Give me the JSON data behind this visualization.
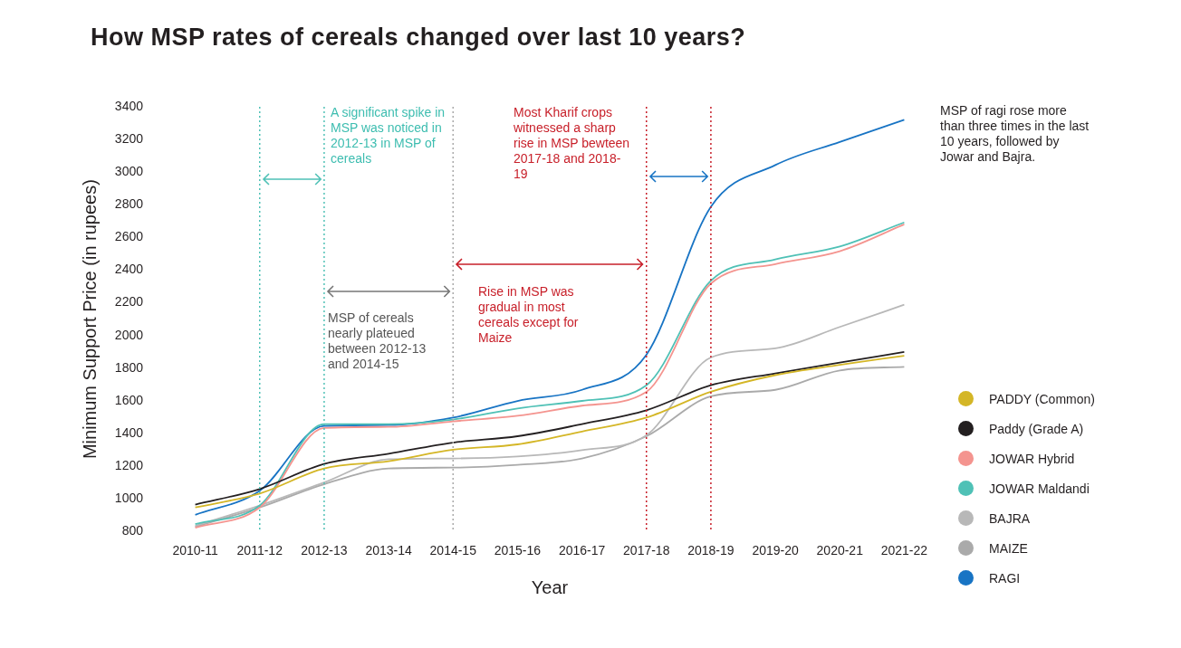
{
  "chart_data": {
    "type": "line",
    "title": "How MSP rates of cereals changed over last 10 years?",
    "xlabel": "Year",
    "ylabel": "Minimum Support Price (in rupees)",
    "categories": [
      "2010-11",
      "2011-12",
      "2012-13",
      "2013-14",
      "2014-15",
      "2015-16",
      "2016-17",
      "2017-18",
      "2018-19",
      "2019-20",
      "2020-21",
      "2021-22"
    ],
    "series": [
      {
        "name": "PADDY (Common)",
        "color": "#d4b626",
        "values": [
          947,
          1032,
          1185,
          1230,
          1300,
          1333,
          1412,
          1497,
          1655,
          1757,
          1820,
          1876
        ]
      },
      {
        "name": "Paddy (Grade A)",
        "color": "#231f20",
        "values": [
          964,
          1060,
          1213,
          1276,
          1344,
          1383,
          1457,
          1542,
          1695,
          1768,
          1834,
          1899
        ]
      },
      {
        "name": "JOWAR Hybrid",
        "color": "#f4948f",
        "values": [
          823,
          947,
          1434,
          1440,
          1474,
          1508,
          1570,
          1655,
          2318,
          2437,
          2516,
          2680
        ]
      },
      {
        "name": "JOWAR Maldandi",
        "color": "#4fc1b6",
        "values": [
          845,
          959,
          1457,
          1457,
          1485,
          1553,
          1599,
          1695,
          2335,
          2465,
          2545,
          2692
        ]
      },
      {
        "name": "BAJRA",
        "color": "#b8b8b8",
        "values": [
          834,
          959,
          1100,
          1242,
          1247,
          1259,
          1298,
          1389,
          1865,
          1921,
          2052,
          2188
        ]
      },
      {
        "name": "MAIZE",
        "color": "#aaaaaa",
        "values": [
          828,
          947,
          1089,
          1185,
          1191,
          1208,
          1247,
          1383,
          1627,
          1667,
          1786,
          1808
        ]
      },
      {
        "name": "RAGI",
        "color": "#1874c4",
        "values": [
          902,
          1049,
          1446,
          1451,
          1497,
          1599,
          1667,
          1882,
          2788,
          3043,
          3185,
          3320
        ]
      }
    ],
    "ylim": [
      800,
      3400
    ],
    "yticks": [
      800,
      1000,
      1200,
      1400,
      1600,
      1800,
      2000,
      2200,
      2400,
      2600,
      2800,
      3000,
      3200,
      3400
    ],
    "grid": false,
    "legend": "right",
    "marker": "none",
    "line_style": "solid",
    "ref_lines": [
      {
        "axis": "x",
        "value": "2011-12",
        "color": "#4fc1b6",
        "line_style": "dotted"
      },
      {
        "axis": "x",
        "value": "2012-13",
        "color": "#4fc1b6",
        "line_style": "dotted"
      },
      {
        "axis": "x",
        "value": "2014-15",
        "color": "#aaaaaa",
        "line_style": "dotted"
      },
      {
        "axis": "x",
        "value": "2017-18",
        "color": "#c8202a",
        "line_style": "dotted"
      },
      {
        "axis": "x",
        "value": "2018-19",
        "color": "#c8202a",
        "line_style": "dotted"
      }
    ],
    "annotations": [
      "A significant spike in MSP was noticed in 2012-13 in MSP of cereals",
      "MSP of cereals nearly plateued between 2012-13 and 2014-15",
      "Most Kharif crops witnessed a sharp rise in MSP bewteen 2017-18 and 2018-19",
      "Rise in MSP was gradual in most cereals except for Maize",
      "MSP of ragi rose more than three times in the last 10 years, followed by Jowar and Bajra."
    ]
  }
}
